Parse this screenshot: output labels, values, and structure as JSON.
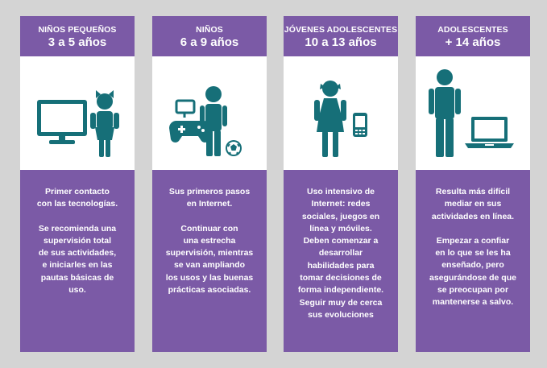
{
  "colors": {
    "purple": "#7b5aa6",
    "teal": "#166f78",
    "background": "#d4d4d4",
    "white": "#ffffff"
  },
  "columns": [
    {
      "title": "NIÑOS PEQUEÑOS",
      "age": "3 a 5 años",
      "icons": [
        "television-icon",
        "girl-child-icon"
      ],
      "lines_a": [
        "Primer contacto",
        "con las tecnologías."
      ],
      "lines_b": [
        "Se recomienda una",
        "supervisión total",
        "de sus actividades,",
        "e iniciarles en las",
        "pautas básicas de",
        "uso."
      ]
    },
    {
      "title": "NIÑOS",
      "age": "6 a 9 años",
      "icons": [
        "chat-bubble-icon",
        "gamepad-icon",
        "boy-child-icon",
        "soccer-ball-icon"
      ],
      "lines_a": [
        "Sus primeros pasos",
        "en Internet."
      ],
      "lines_b": [
        "Continuar con",
        "una estrecha",
        "supervisión, mientras",
        "se van ampliando",
        "los usos y las buenas",
        "prácticas asociadas."
      ]
    },
    {
      "title": "JÓVENES ADOLESCENTES",
      "age": "10 a 13 años",
      "icons": [
        "girl-teen-icon",
        "smartphone-icon"
      ],
      "lines_a": [
        "Uso intensivo de",
        "Internet: redes",
        "sociales, juegos en",
        "línea y móviles.",
        "Deben comenzar a",
        "desarrollar",
        "habilidades para",
        "tomar decisiones de",
        "forma independiente.",
        "Seguir muy de cerca",
        "sus evoluciones"
      ],
      "lines_b": []
    },
    {
      "title": "ADOLESCENTES",
      "age": "+ 14 años",
      "icons": [
        "teen-icon",
        "laptop-icon"
      ],
      "lines_a": [
        "Resulta más difícil",
        "mediar en sus",
        "actividades en línea."
      ],
      "lines_b": [
        "Empezar a confiar",
        "en lo que se les ha",
        "enseñado, pero",
        "asegurándose de que",
        "se preocupan por",
        "mantenerse a salvo."
      ]
    }
  ]
}
